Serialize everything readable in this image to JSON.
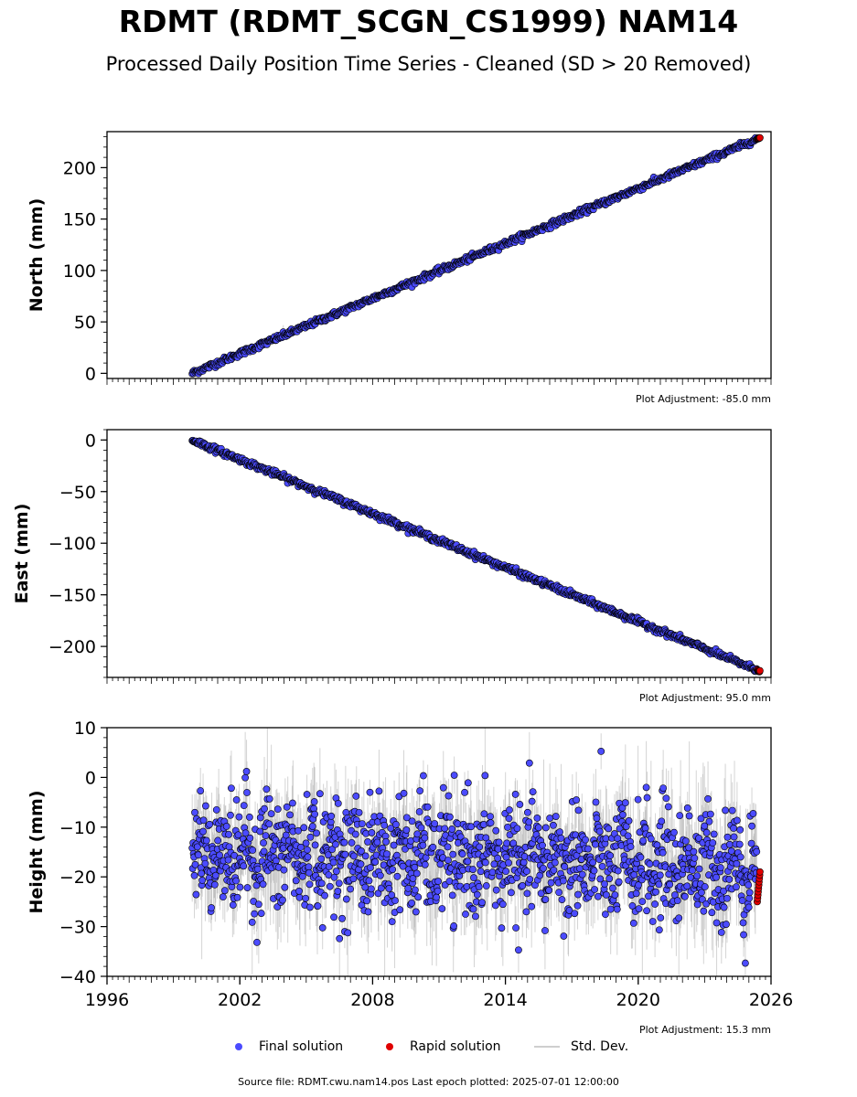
{
  "title": "RDMT (RDMT_SCGN_CS1999) NAM14",
  "subtitle": "Processed Daily Position Time Series - Cleaned (SD > 20 Removed)",
  "footer": "Source file: RDMT.cwu.nam14.pos  Last epoch plotted: 2025-07-01 12:00:00",
  "legend": {
    "final": "Final solution",
    "rapid": "Rapid solution",
    "std": "Std. Dev."
  },
  "colors": {
    "final": "#4b4bff",
    "rapid": "#e00000",
    "std": "#b0b0b0",
    "marker_edge": "#000000"
  },
  "chart_data": [
    {
      "type": "scatter",
      "ylabel": "North (mm)",
      "adjustment": "Plot Adjustment: -85.0 mm",
      "xlim": [
        1996,
        2026
      ],
      "ylim": [
        -5,
        235
      ],
      "yticks": [
        0,
        50,
        100,
        150,
        200
      ],
      "xticks": [],
      "trend": {
        "x_start": 1999.85,
        "y_start": 0,
        "x_end": 2025.5,
        "y_end": 229
      },
      "noise_sd": 1.4,
      "std_sd": 1.5,
      "series": [
        {
          "name": "Final solution",
          "x_range": [
            1999.85,
            2025.35
          ]
        },
        {
          "name": "Rapid solution",
          "x_range": [
            2025.38,
            2025.5
          ]
        }
      ]
    },
    {
      "type": "scatter",
      "ylabel": "East (mm)",
      "adjustment": "Plot Adjustment: 95.0 mm",
      "xlim": [
        1996,
        2026
      ],
      "ylim": [
        -230,
        10
      ],
      "yticks": [
        0,
        -50,
        -100,
        -150,
        -200
      ],
      "xticks": [],
      "trend": {
        "x_start": 1999.85,
        "y_start": 0,
        "x_end": 2025.5,
        "y_end": -224
      },
      "noise_sd": 1.4,
      "std_sd": 1.5,
      "series": [
        {
          "name": "Final solution",
          "x_range": [
            1999.85,
            2025.35
          ]
        },
        {
          "name": "Rapid solution",
          "x_range": [
            2025.38,
            2025.5
          ]
        }
      ]
    },
    {
      "type": "scatter",
      "ylabel": "Height (mm)",
      "adjustment": "Plot Adjustment: 15.3 mm",
      "xlim": [
        1996,
        2026
      ],
      "ylim": [
        -40,
        10
      ],
      "yticks": [
        10,
        0,
        -10,
        -20,
        -30,
        -40
      ],
      "xticks": [
        1996,
        2002,
        2008,
        2014,
        2020,
        2026
      ],
      "trend": {
        "x_start": 1999.85,
        "y_start": -15,
        "x_end": 2025.5,
        "y_end": -18
      },
      "noise_sd": 5.5,
      "std_sd": 5,
      "series": [
        {
          "name": "Final solution",
          "x_range": [
            1999.85,
            2025.35
          ]
        },
        {
          "name": "Rapid solution",
          "x_range": [
            2025.38,
            2025.5
          ],
          "y_range": [
            -25,
            -19
          ]
        }
      ]
    }
  ]
}
